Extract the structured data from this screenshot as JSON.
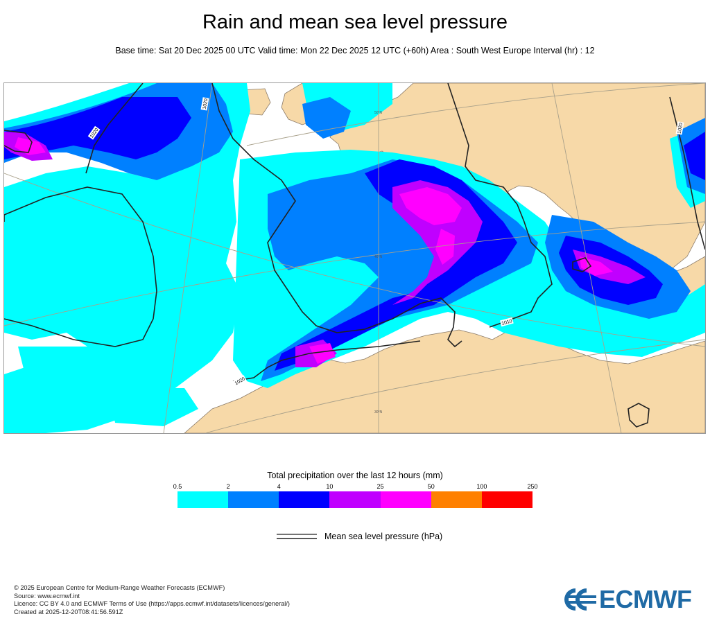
{
  "title": "Rain and mean sea level pressure",
  "subtitle": "Base time: Sat 20 Dec 2025 00 UTC Valid time: Mon 22 Dec 2025 12 UTC (+60h) Area : South West Europe Interval (hr) : 12",
  "map": {
    "isobar_labels": [
      "1020",
      "1020",
      "1020",
      "1010",
      "1020"
    ],
    "lat_labels": [
      "50°N",
      "40°N",
      "30°N"
    ],
    "colors": {
      "land": "#f7d9a8",
      "sea": "#ffffff",
      "coast": "#8a7a68",
      "isobar": "#222222",
      "graticule": "#a8a08a"
    }
  },
  "legend": {
    "title": "Total precipitation over the last 12 hours (mm)",
    "ticks": [
      "0.5",
      "2",
      "4",
      "10",
      "25",
      "50",
      "100",
      "250"
    ],
    "colors": [
      "#00ffff",
      "#0080ff",
      "#0000ff",
      "#c000ff",
      "#ff00ff",
      "#ff8000",
      "#ff0000"
    ]
  },
  "msl_legend": {
    "label": "Mean sea level pressure (hPa)"
  },
  "footer": {
    "copyright": "© 2025 European Centre for Medium-Range Weather Forecasts (ECMWF)",
    "source": "Source: www.ecmwf.int",
    "licence": "Licence: CC BY 4.0 and ECMWF Terms of Use (https://apps.ecmwf.int/datasets/licences/general/)",
    "created": "Created at 2025-12-20T08:41:56.591Z"
  },
  "logo": {
    "text": "ECMWF",
    "color": "#1f6aa5"
  }
}
